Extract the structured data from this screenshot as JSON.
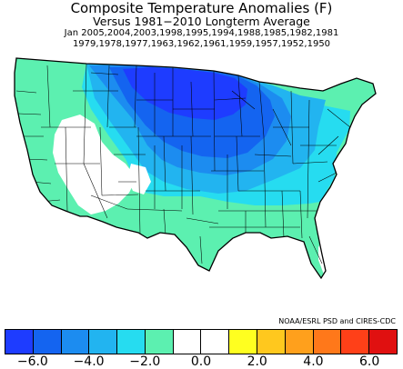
{
  "header": {
    "title": "Composite Temperature Anomalies (F)",
    "subtitle": "Versus 1981−2010 Longterm Average",
    "years_line1": "Jan  2005,2004,2003,1998,1995,1994,1988,1985,1982,1981",
    "years_line2": "1979,1978,1977,1963,1962,1961,1959,1957,1952,1950"
  },
  "credit": "NOAA/ESRL PSD and CIRES-CDC",
  "legend": {
    "colors": [
      "#1e3cff",
      "#1464f0",
      "#1c8cf0",
      "#22b4f0",
      "#26dcf0",
      "#5cf0b0",
      "#ffffff",
      "#ffffff",
      "#ffff20",
      "#ffc81e",
      "#ffa01c",
      "#ff781a",
      "#ff4018",
      "#e01010"
    ],
    "tick_labels": [
      "−6.0",
      "−4.0",
      "−2.0",
      "0.0",
      "2.0",
      "4.0",
      "6.0"
    ]
  },
  "map_colors": {
    "deep_blue": "#1e3cff",
    "blue": "#1464f0",
    "mid_blue": "#1c8cf0",
    "light_blue": "#22b4f0",
    "cyan": "#26dcf0",
    "aqua": "#5cf0b0",
    "white": "#ffffff"
  }
}
